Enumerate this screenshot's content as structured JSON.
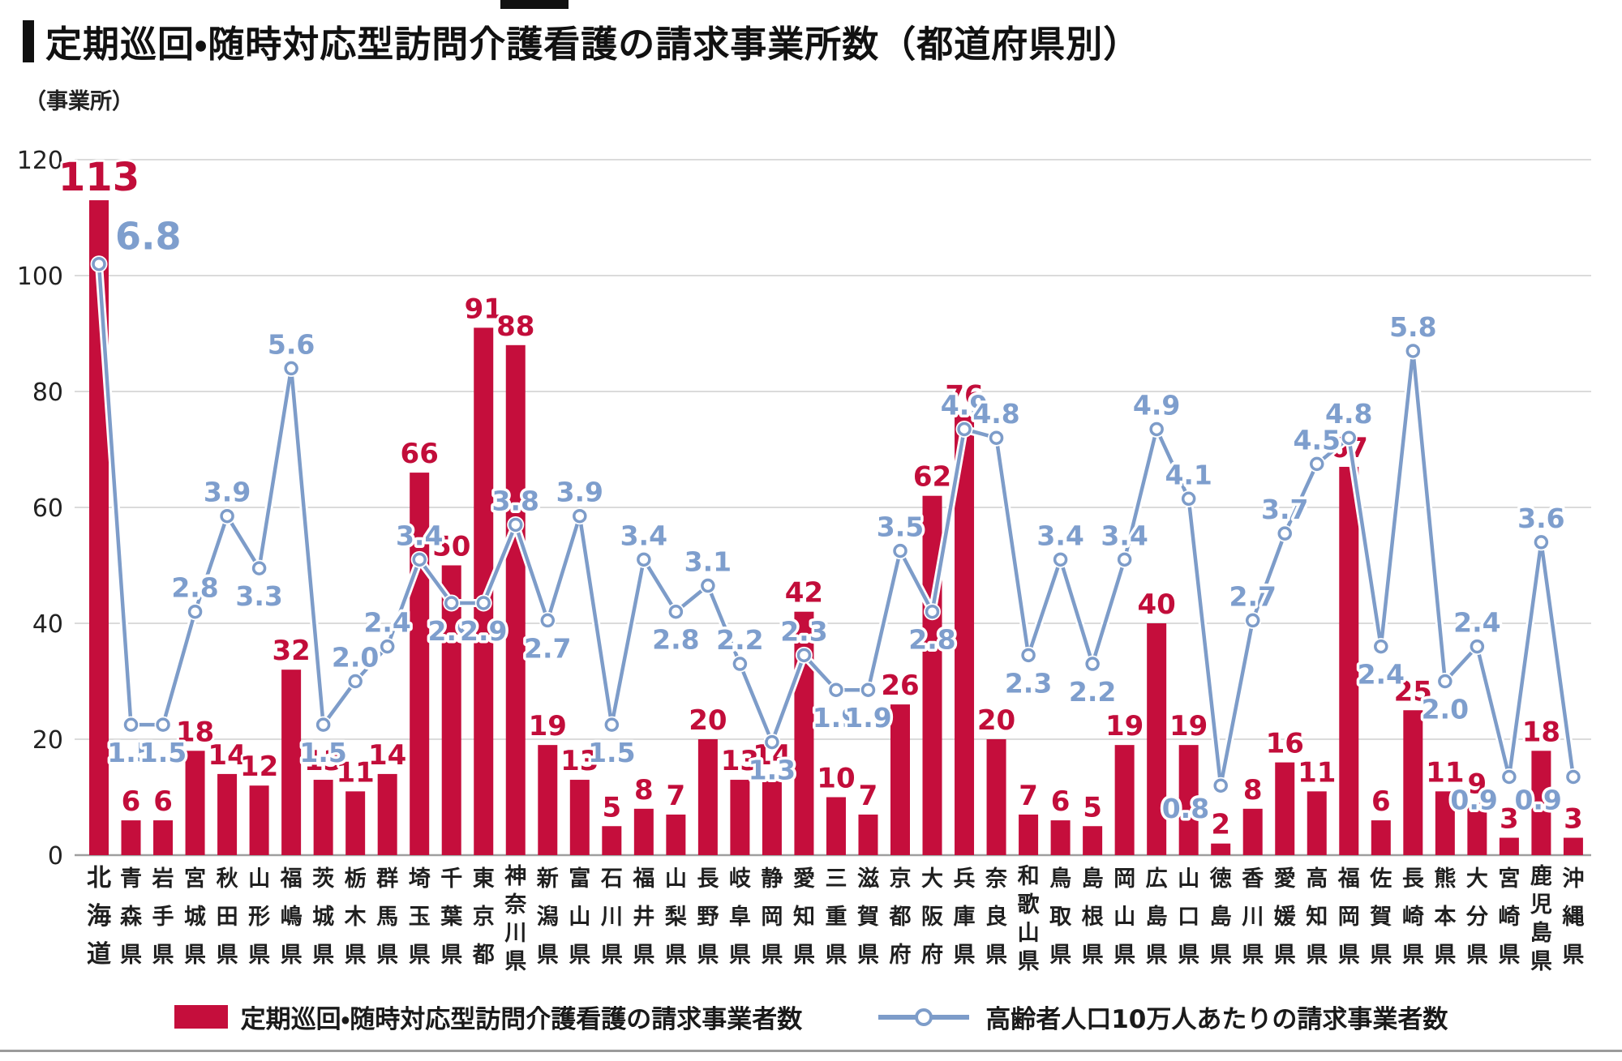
{
  "page": {
    "title": "定期巡回・随時対応型訪問介護看護の請求事業所数（都道府県別）",
    "y_axis_unit": "（事業所）"
  },
  "legend": {
    "bar_label": "定期巡回・随時対応型訪問介護看護の請求事業者数",
    "line_label": "高齢者人口10万人あたりの請求事業者数"
  },
  "colors": {
    "bar": "#c50e3c",
    "bar_value_label": "#c20d3a",
    "line": "#7d9cc9",
    "line_value_label": "#7e9ecd",
    "grid": "#cfcfcf",
    "axis_line": "#9f9f9f",
    "axis_text": "#222222",
    "category_text": "#1f1f1f"
  },
  "chart_data": {
    "type": "bar",
    "title": "定期巡回・随時対応型訪問介護看護の請求事業所数（都道府県別）",
    "xlabel": "",
    "ylabel": "（事業所）",
    "ylim": [
      0,
      120
    ],
    "yticks": [
      0,
      20,
      40,
      60,
      80,
      100,
      120
    ],
    "line_ylim": [
      0,
      8
    ],
    "grid": true,
    "legend_position": "bottom",
    "categories": [
      "北海道",
      "青森県",
      "岩手県",
      "宮城県",
      "秋田県",
      "山形県",
      "福嶋県",
      "茨城県",
      "栃木県",
      "群馬県",
      "埼玉県",
      "千葉県",
      "東京都",
      "神奈川県",
      "新潟県",
      "富山県",
      "石川県",
      "福井県",
      "山梨県",
      "長野県",
      "岐阜県",
      "静岡県",
      "愛知県",
      "三重県",
      "滋賀県",
      "京都府",
      "大阪府",
      "兵庫県",
      "奈良県",
      "和歌山県",
      "鳥取県",
      "島根県",
      "岡山県",
      "広島県",
      "山口県",
      "徳島県",
      "香川県",
      "愛媛県",
      "高知県",
      "福岡県",
      "佐賀県",
      "長崎県",
      "熊本県",
      "大分県",
      "宮崎県",
      "鹿児島県",
      "沖縄県"
    ],
    "series": [
      {
        "name": "定期巡回・随時対応型訪問介護看護の請求事業者数",
        "type": "bar",
        "color": "#c50e3c",
        "values": [
          113,
          6,
          6,
          18,
          14,
          12,
          32,
          13,
          11,
          14,
          66,
          50,
          91,
          88,
          19,
          13,
          5,
          8,
          7,
          20,
          13,
          14,
          42,
          10,
          7,
          26,
          62,
          76,
          20,
          7,
          6,
          5,
          19,
          40,
          19,
          2,
          8,
          16,
          11,
          67,
          6,
          25,
          11,
          9,
          3,
          18,
          3
        ]
      },
      {
        "name": "高齢者人口10万人あたりの請求事業者数",
        "type": "line",
        "color": "#7d9cc9",
        "values": [
          6.8,
          1.5,
          1.5,
          2.8,
          3.9,
          3.3,
          5.6,
          1.5,
          2.0,
          2.4,
          3.4,
          2.9,
          2.9,
          3.8,
          2.7,
          3.9,
          1.5,
          3.4,
          2.8,
          3.1,
          2.2,
          1.3,
          2.3,
          1.9,
          1.9,
          3.5,
          2.8,
          4.9,
          4.8,
          2.3,
          3.4,
          2.2,
          3.4,
          4.9,
          4.1,
          0.8,
          2.7,
          3.7,
          4.5,
          4.8,
          2.4,
          5.8,
          2.0,
          2.4,
          0.9,
          3.6,
          0.9
        ]
      }
    ]
  }
}
